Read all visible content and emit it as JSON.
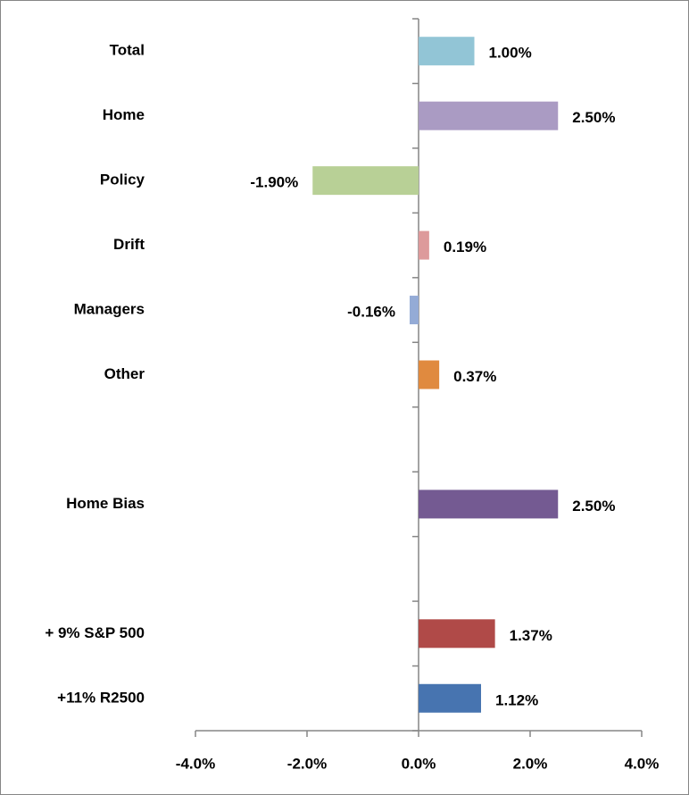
{
  "chart_data": {
    "type": "bar",
    "orientation": "horizontal",
    "categories": [
      "Total",
      "Home",
      "Policy",
      "Drift",
      "Managers",
      "Other",
      null,
      "Home Bias",
      null,
      "+ 9% S&P 500",
      "+11% R2500"
    ],
    "values": [
      1.0,
      2.5,
      -1.9,
      0.19,
      -0.16,
      0.37,
      null,
      2.5,
      null,
      1.37,
      1.12
    ],
    "value_labels": [
      "1.00%",
      "2.50%",
      "-1.90%",
      "0.19%",
      "-0.16%",
      "0.37%",
      null,
      "2.50%",
      null,
      "1.37%",
      "1.12%"
    ],
    "colors": [
      "#92c5d6",
      "#aa9bc3",
      "#b8d096",
      "#dd9a9b",
      "#94abd6",
      "#e08a3f",
      null,
      "#745a92",
      null,
      "#b04a48",
      "#4774b0"
    ],
    "xlim": [
      -4,
      4
    ],
    "xticks": [
      {
        "value": -4,
        "label": "-4.0%"
      },
      {
        "value": -2,
        "label": "-2.0%"
      },
      {
        "value": 0,
        "label": "0.0%"
      },
      {
        "value": 2,
        "label": "2.0%"
      },
      {
        "value": 4,
        "label": "4.0%"
      }
    ],
    "grid": false
  }
}
